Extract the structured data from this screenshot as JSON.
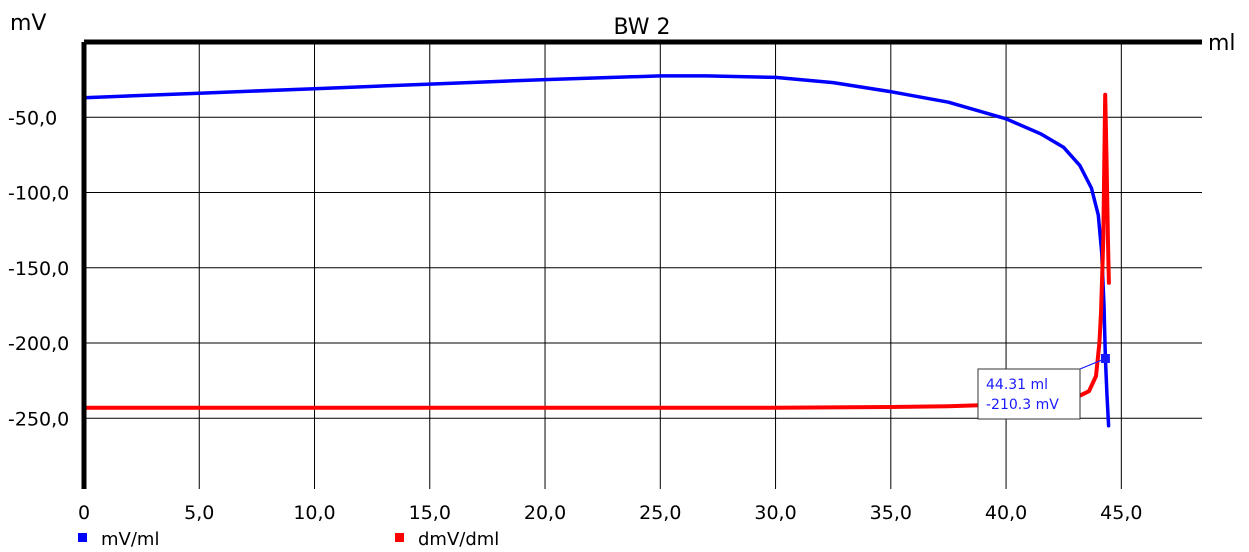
{
  "chart_data": {
    "type": "line",
    "title": "BW 2",
    "ylabel": "mV",
    "xlabel": "ml",
    "xlim": [
      0,
      48.5
    ],
    "ylim": [
      -297,
      0
    ],
    "x_ticks": [
      0,
      5,
      10,
      15,
      20,
      25,
      30,
      35,
      40,
      45
    ],
    "x_tick_labels": [
      "0",
      "5,0",
      "10,0",
      "15,0",
      "20,0",
      "25,0",
      "30,0",
      "35,0",
      "40,0",
      "45,0"
    ],
    "y_ticks": [
      -50,
      -100,
      -150,
      -200,
      -250
    ],
    "y_tick_labels": [
      "-50,0",
      "-100,0",
      "-150,0",
      "-200,0",
      "-250,0"
    ],
    "grid": true,
    "legend_position": "bottom-left",
    "series": [
      {
        "name": "mV/ml",
        "color": "#0000ff",
        "points": [
          [
            0,
            -37
          ],
          [
            5,
            -34
          ],
          [
            10,
            -31
          ],
          [
            15,
            -28
          ],
          [
            20,
            -25
          ],
          [
            25,
            -22.5
          ],
          [
            27,
            -22.5
          ],
          [
            30,
            -23.5
          ],
          [
            32.5,
            -27
          ],
          [
            35,
            -33
          ],
          [
            37.5,
            -40
          ],
          [
            40,
            -51
          ],
          [
            41.5,
            -61
          ],
          [
            42.5,
            -70
          ],
          [
            43.2,
            -82
          ],
          [
            43.7,
            -97
          ],
          [
            44.0,
            -115
          ],
          [
            44.15,
            -140
          ],
          [
            44.25,
            -175
          ],
          [
            44.31,
            -210.3
          ],
          [
            44.38,
            -235
          ],
          [
            44.45,
            -255
          ]
        ]
      },
      {
        "name": "dmV/dml",
        "color": "#ff0000",
        "points": [
          [
            0,
            -243
          ],
          [
            20,
            -243
          ],
          [
            25,
            -243
          ],
          [
            30,
            -243
          ],
          [
            35,
            -242.5
          ],
          [
            37.5,
            -242
          ],
          [
            39.5,
            -241
          ],
          [
            41,
            -240
          ],
          [
            42,
            -238.5
          ],
          [
            43,
            -236.5
          ],
          [
            43.6,
            -232
          ],
          [
            43.9,
            -222
          ],
          [
            44.05,
            -200
          ],
          [
            44.12,
            -180
          ],
          [
            44.17,
            -155
          ],
          [
            44.22,
            -130
          ],
          [
            44.26,
            -80
          ],
          [
            44.3,
            -35
          ],
          [
            44.36,
            -80
          ],
          [
            44.42,
            -130
          ],
          [
            44.46,
            -160
          ]
        ]
      }
    ],
    "annotation": {
      "x_label": "44.31 ml",
      "y_label": "-210.3 mV",
      "x": 44.31,
      "y": -210.3
    }
  }
}
